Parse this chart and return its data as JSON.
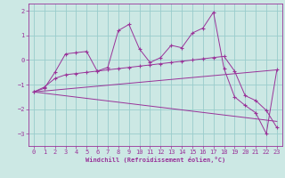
{
  "xlabel": "Windchill (Refroidissement éolien,°C)",
  "bg_color": "#cce8e4",
  "grid_color": "#99cccc",
  "line_color": "#993399",
  "x_ticks": [
    0,
    1,
    2,
    3,
    4,
    5,
    6,
    7,
    8,
    9,
    10,
    11,
    12,
    13,
    14,
    15,
    16,
    17,
    18,
    19,
    20,
    21,
    22,
    23
  ],
  "ylim": [
    -3.5,
    2.3
  ],
  "xlim": [
    -0.5,
    23.5
  ],
  "series1_x": [
    0,
    1,
    2,
    3,
    4,
    5,
    6,
    7,
    8,
    9,
    10,
    11,
    12,
    13,
    14,
    15,
    16,
    17,
    18,
    19,
    20,
    21,
    22,
    23
  ],
  "series1_y": [
    -1.3,
    -1.15,
    -0.5,
    0.25,
    0.3,
    0.35,
    -0.45,
    -0.3,
    1.2,
    1.45,
    0.45,
    -0.1,
    0.1,
    0.6,
    0.5,
    1.1,
    1.3,
    1.95,
    -0.35,
    -1.5,
    -1.85,
    -2.15,
    -3.0,
    -0.4
  ],
  "series2_x": [
    0,
    1,
    2,
    3,
    4,
    5,
    6,
    7,
    8,
    9,
    10,
    11,
    12,
    13,
    14,
    15,
    16,
    17,
    18,
    19,
    20,
    21,
    22,
    23
  ],
  "series2_y": [
    -1.3,
    -1.1,
    -0.75,
    -0.6,
    -0.55,
    -0.5,
    -0.45,
    -0.4,
    -0.35,
    -0.3,
    -0.25,
    -0.2,
    -0.15,
    -0.1,
    -0.05,
    0.0,
    0.05,
    0.1,
    0.15,
    -0.45,
    -1.45,
    -1.65,
    -2.05,
    -2.75
  ],
  "series3_x": [
    0,
    23
  ],
  "series3_y": [
    -1.3,
    -2.5
  ],
  "series4_x": [
    0,
    23
  ],
  "series4_y": [
    -1.3,
    -0.4
  ],
  "yticks": [
    -3,
    -2,
    -1,
    0,
    1,
    2
  ]
}
